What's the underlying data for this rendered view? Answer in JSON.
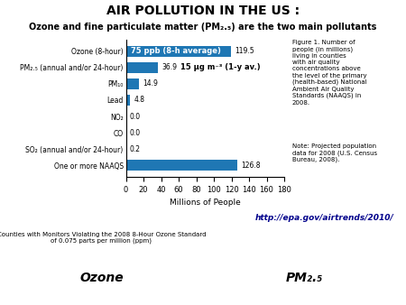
{
  "chart_data": {
    "type": "bar",
    "orientation": "horizontal",
    "title": "AIR POLLUTION IN THE US :",
    "subtitle": "Ozone and fine particulate matter (PM₂.₅) are the two main pollutants",
    "categories": [
      "Ozone (8-hour)",
      "PM₂.₅ (annual and/or 24-hour)",
      "PM₁₀",
      "Lead",
      "NO₂",
      "CO",
      "SO₂ (annual and/or 24-hour)",
      "One or more NAAQS"
    ],
    "values": [
      119.5,
      36.9,
      14.9,
      4.8,
      0.0,
      0.0,
      0.2,
      126.8
    ],
    "value_labels": [
      "119.5",
      "36.9",
      "14.9",
      "4.8",
      "0.0",
      "0.0",
      "0.2",
      "126.8"
    ],
    "data_labels": true,
    "xlabel": "Millions of People",
    "xlim": [
      0,
      180
    ],
    "xticks": [
      0,
      20,
      40,
      60,
      80,
      100,
      120,
      140,
      160,
      180
    ],
    "annotations": [
      "75 ppb (8-h average)",
      "15 μg m⁻³ (1-y av.)",
      "Figure 1. Number of\npeople (in millions)\nliving in counties\nwith air quality\nconcentrations above\nthe level of the primary\n(health-based) National\nAmbient Air Quality\nStandards (NAAQS) in\n2008.",
      "Note: Projected population\ndata for 2008 (U.S. Census\nBureau, 2008).",
      "http://epa.gov/airtrends/2010/",
      "Counties with Monitors Violating the 2008 8-Hour Ozone Standard\nof 0.075 parts per million (ppm)",
      "Ozone",
      "PM₂.₅"
    ]
  }
}
